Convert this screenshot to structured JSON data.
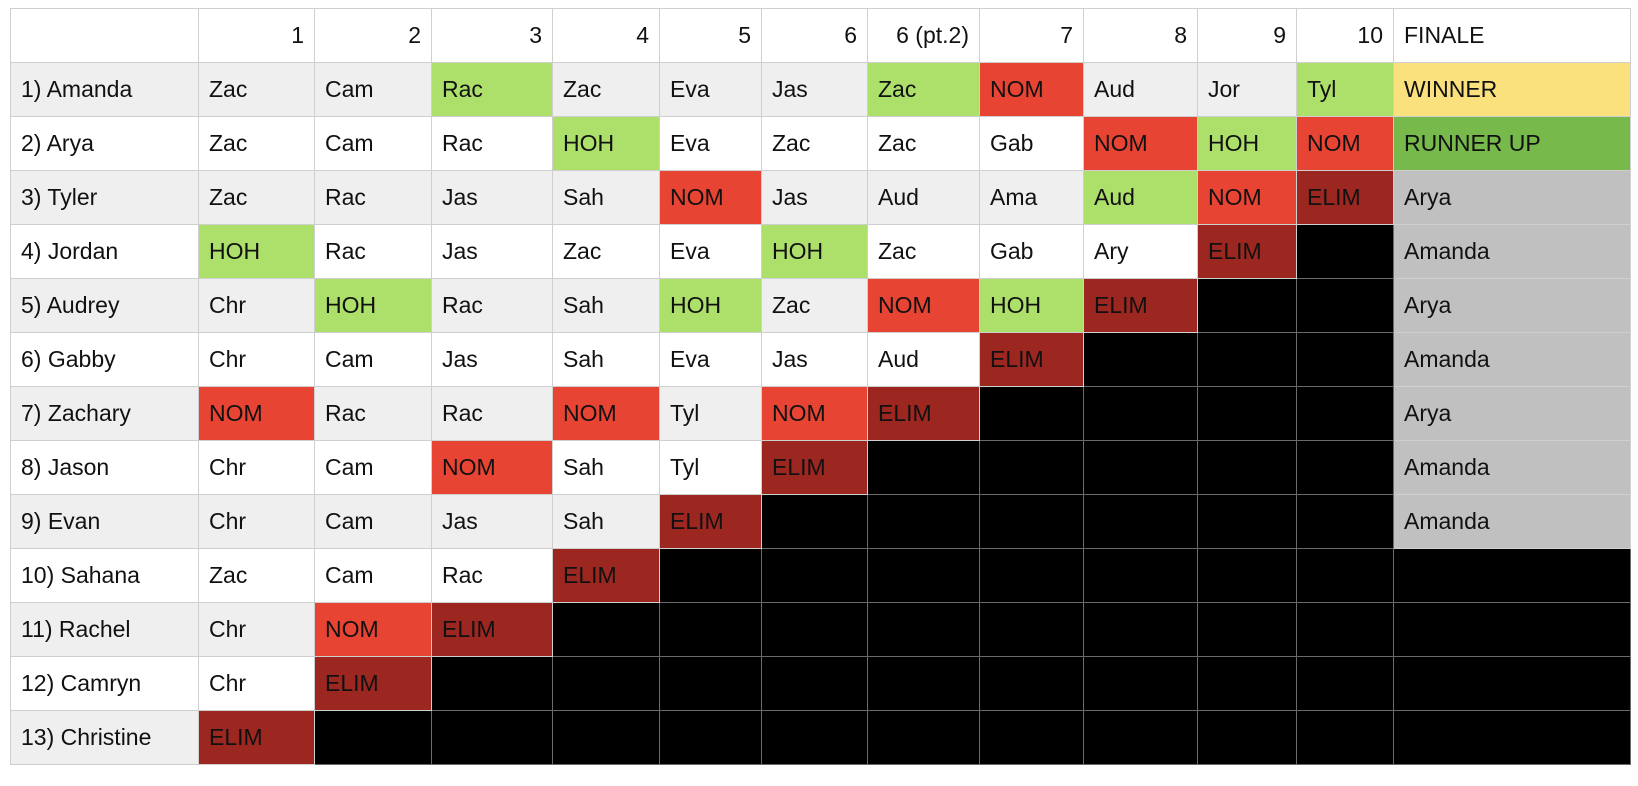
{
  "table": {
    "corner": "",
    "columns": [
      "1",
      "2",
      "3",
      "4",
      "5",
      "6",
      "6 (pt.2)",
      "7",
      "8",
      "9",
      "10",
      "FINALE"
    ],
    "status_colors": {
      "HOH": "#addf6b",
      "NOM": "#e84434",
      "ELIM": "#9c2721",
      "eliminated_blank": "#000000",
      "WINNER": "#fbe17e",
      "RUNNER UP": "#77b94a",
      "jury_vote": "#c0c0c0"
    },
    "rows": [
      {
        "name": "1) Amanda",
        "cells": [
          "Zac",
          "Cam",
          "Rac",
          "Zac",
          "Eva",
          "Jas",
          "Zac",
          "NOM",
          "Aud",
          "Jor",
          "Tyl",
          "WINNER"
        ],
        "styles": [
          "",
          "",
          "hoh",
          "",
          "",
          "",
          "hoh",
          "nom",
          "",
          "",
          "hoh",
          "winner"
        ]
      },
      {
        "name": "2) Arya",
        "cells": [
          "Zac",
          "Cam",
          "Rac",
          "HOH",
          "Eva",
          "Zac",
          "Zac",
          "Gab",
          "NOM",
          "HOH",
          "NOM",
          "RUNNER UP"
        ],
        "styles": [
          "",
          "",
          "",
          "hoh",
          "",
          "",
          "",
          "",
          "nom",
          "hoh",
          "nom",
          "runner"
        ]
      },
      {
        "name": "3) Tyler",
        "cells": [
          "Zac",
          "Rac",
          "Jas",
          "Sah",
          "NOM",
          "Jas",
          "Aud",
          "Ama",
          "Aud",
          "NOM",
          "ELIM",
          "Arya"
        ],
        "styles": [
          "",
          "",
          "",
          "",
          "nom",
          "",
          "",
          "",
          "hoh",
          "nom",
          "elim",
          "jury"
        ]
      },
      {
        "name": "4) Jordan",
        "cells": [
          "HOH",
          "Rac",
          "Jas",
          "Zac",
          "Eva",
          "HOH",
          "Zac",
          "Gab",
          "Ary",
          "ELIM",
          "",
          "Amanda"
        ],
        "styles": [
          "hoh",
          "",
          "",
          "",
          "",
          "hoh",
          "",
          "",
          "",
          "elim",
          "black",
          "jury"
        ]
      },
      {
        "name": "5) Audrey",
        "cells": [
          "Chr",
          "HOH",
          "Rac",
          "Sah",
          "HOH",
          "Zac",
          "NOM",
          "HOH",
          "ELIM",
          "",
          "",
          "Arya"
        ],
        "styles": [
          "",
          "hoh",
          "",
          "",
          "hoh",
          "",
          "nom",
          "hoh",
          "elim",
          "black",
          "black",
          "jury"
        ]
      },
      {
        "name": "6) Gabby",
        "cells": [
          "Chr",
          "Cam",
          "Jas",
          "Sah",
          "Eva",
          "Jas",
          "Aud",
          "ELIM",
          "",
          "",
          "",
          "Amanda"
        ],
        "styles": [
          "",
          "",
          "",
          "",
          "",
          "",
          "",
          "elim",
          "black",
          "black",
          "black",
          "jury"
        ]
      },
      {
        "name": "7) Zachary",
        "cells": [
          "NOM",
          "Rac",
          "Rac",
          "NOM",
          "Tyl",
          "NOM",
          "ELIM",
          "",
          "",
          "",
          "",
          "Arya"
        ],
        "styles": [
          "nom",
          "",
          "",
          "nom",
          "",
          "nom",
          "elim",
          "black",
          "black",
          "black",
          "black",
          "jury"
        ]
      },
      {
        "name": "8) Jason",
        "cells": [
          "Chr",
          "Cam",
          "NOM",
          "Sah",
          "Tyl",
          "ELIM",
          "",
          "",
          "",
          "",
          "",
          "Amanda"
        ],
        "styles": [
          "",
          "",
          "nom",
          "",
          "",
          "elim",
          "black",
          "black",
          "black",
          "black",
          "black",
          "jury"
        ]
      },
      {
        "name": "9) Evan",
        "cells": [
          "Chr",
          "Cam",
          "Jas",
          "Sah",
          "ELIM",
          "",
          "",
          "",
          "",
          "",
          "",
          "Amanda"
        ],
        "styles": [
          "",
          "",
          "",
          "",
          "elim",
          "black",
          "black",
          "black",
          "black",
          "black",
          "black",
          "jury"
        ]
      },
      {
        "name": "10) Sahana",
        "cells": [
          "Zac",
          "Cam",
          "Rac",
          "ELIM",
          "",
          "",
          "",
          "",
          "",
          "",
          "",
          ""
        ],
        "styles": [
          "",
          "",
          "",
          "elim",
          "black",
          "black",
          "black",
          "black",
          "black",
          "black",
          "black",
          "black"
        ]
      },
      {
        "name": "11) Rachel",
        "cells": [
          "Chr",
          "NOM",
          "ELIM",
          "",
          "",
          "",
          "",
          "",
          "",
          "",
          "",
          ""
        ],
        "styles": [
          "",
          "nom",
          "elim",
          "black",
          "black",
          "black",
          "black",
          "black",
          "black",
          "black",
          "black",
          "black"
        ]
      },
      {
        "name": "12) Camryn",
        "cells": [
          "Chr",
          "ELIM",
          "",
          "",
          "",
          "",
          "",
          "",
          "",
          "",
          "",
          ""
        ],
        "styles": [
          "",
          "elim",
          "black",
          "black",
          "black",
          "black",
          "black",
          "black",
          "black",
          "black",
          "black",
          "black"
        ]
      },
      {
        "name": "13) Christine",
        "cells": [
          "ELIM",
          "",
          "",
          "",
          "",
          "",
          "",
          "",
          "",
          "",
          "",
          ""
        ],
        "styles": [
          "elim",
          "black",
          "black",
          "black",
          "black",
          "black",
          "black",
          "black",
          "black",
          "black",
          "black",
          "black"
        ]
      }
    ]
  }
}
